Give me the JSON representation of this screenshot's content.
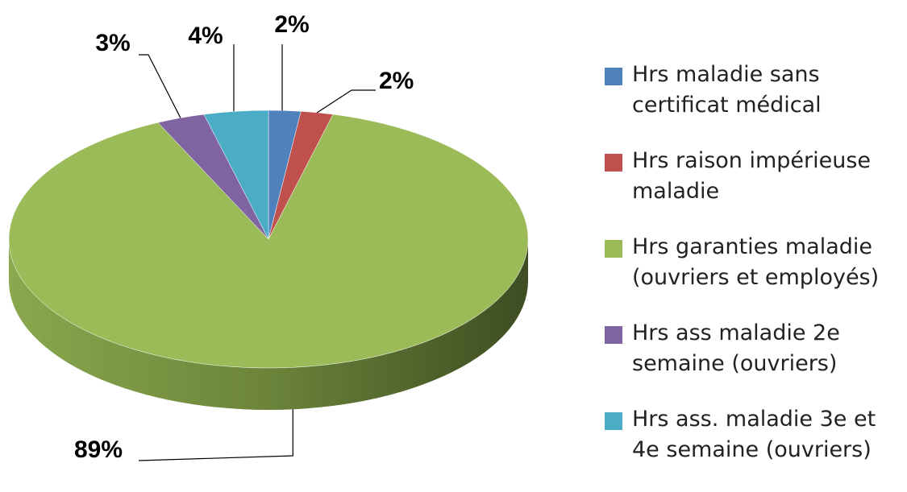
{
  "chart_data": {
    "type": "pie",
    "categories": [
      "Hrs maladie sans certificat médical",
      "Hrs raison impérieuse maladie",
      "Hrs garanties maladie (ouvriers et employés)",
      "Hrs ass maladie 2e semaine (ouvriers)",
      "Hrs ass. maladie 3e et 4e semaine (ouvriers)"
    ],
    "values": [
      2,
      2,
      89,
      3,
      4
    ],
    "value_labels": [
      "2%",
      "2%",
      "89%",
      "3%",
      "4%"
    ],
    "colors": [
      "#4f81bd",
      "#c0504d",
      "#9bbb59",
      "#8064a2",
      "#4bacc6"
    ],
    "legend": "right"
  }
}
